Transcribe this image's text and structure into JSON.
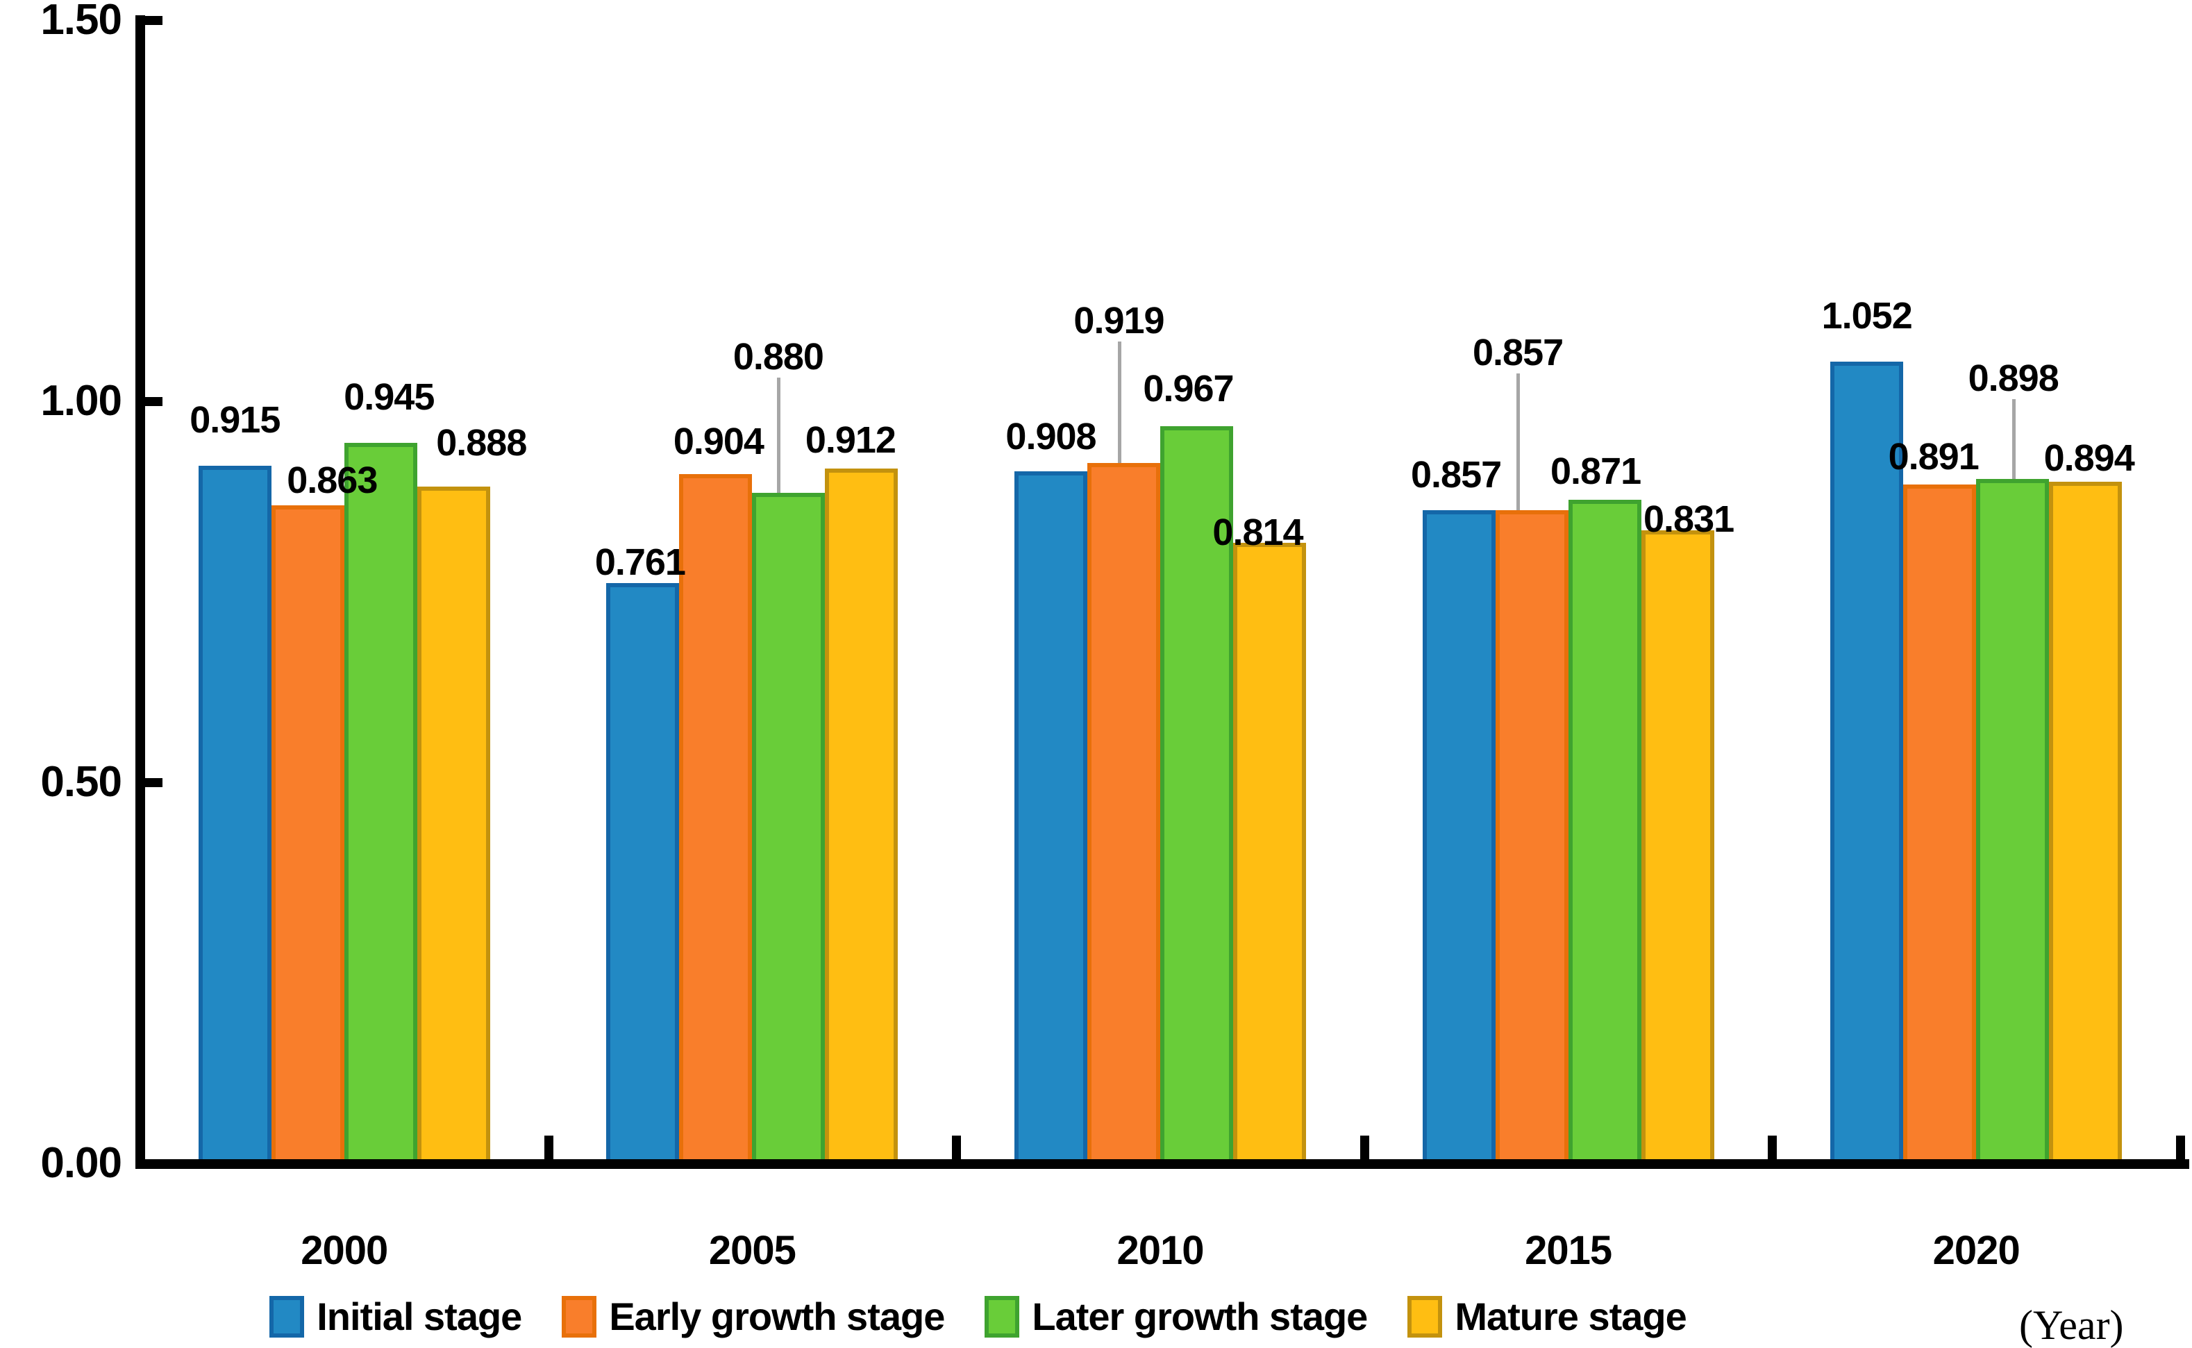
{
  "chart_data": {
    "type": "bar",
    "title": "",
    "categories": [
      "2000",
      "2005",
      "2010",
      "2015",
      "2020"
    ],
    "series": [
      {
        "name": "Initial stage",
        "color": "#2289C4",
        "border_color": "#1467A8",
        "values": [
          0.915,
          0.761,
          0.908,
          0.857,
          1.052
        ],
        "labels": [
          "0.915",
          "0.761",
          "0.908",
          "0.857",
          "1.052"
        ],
        "label_offsets": [
          {
            "dx": 0,
            "dy": -66,
            "leader": false
          },
          {
            "dx": -4,
            "dy": -30,
            "leader": false
          },
          {
            "dx": 0,
            "dy": -50,
            "leader": false
          },
          {
            "dx": -4,
            "dy": -51,
            "leader": false
          },
          {
            "dx": 0,
            "dy": -66,
            "leader": false
          }
        ]
      },
      {
        "name": "Early growth stage",
        "color": "#F97E2B",
        "border_color": "#E8700A",
        "values": [
          0.863,
          0.904,
          0.919,
          0.857,
          0.891
        ],
        "labels": [
          "0.863",
          "0.904",
          "0.919",
          "0.857",
          "0.891"
        ],
        "label_offsets": [
          {
            "dx": 35,
            "dy": -36,
            "leader": false
          },
          {
            "dx": 4,
            "dy": -47,
            "leader": false
          },
          {
            "dx": -7,
            "dy": -205,
            "leader": true
          },
          {
            "dx": -20,
            "dy": -227,
            "leader": true
          },
          {
            "dx": -9,
            "dy": -40,
            "leader": false
          }
        ]
      },
      {
        "name": "Later growth stage",
        "color": "#69CD39",
        "border_color": "#3FA32F",
        "values": [
          0.945,
          0.88,
          0.967,
          0.871,
          0.898
        ],
        "labels": [
          "0.945",
          "0.880",
          "0.967",
          "0.871",
          "0.898"
        ],
        "label_offsets": [
          {
            "dx": 12,
            "dy": -66,
            "leader": false
          },
          {
            "dx": -15,
            "dy": -196,
            "leader": true
          },
          {
            "dx": -12,
            "dy": -54,
            "leader": false
          },
          {
            "dx": -13,
            "dy": -41,
            "leader": false
          },
          {
            "dx": 1,
            "dy": -145,
            "leader": true
          }
        ]
      },
      {
        "name": "Mature stage",
        "color": "#FFBE12",
        "border_color": "#C3920E",
        "values": [
          0.888,
          0.912,
          0.814,
          0.831,
          0.894
        ],
        "labels": [
          "0.888",
          "0.912",
          "0.814",
          "0.831",
          "0.894"
        ],
        "label_offsets": [
          {
            "dx": 40,
            "dy": -63,
            "leader": false
          },
          {
            "dx": -16,
            "dy": -41,
            "leader": false
          },
          {
            "dx": -17,
            "dy": -15,
            "leader": false
          },
          {
            "dx": 16,
            "dy": -16,
            "leader": false
          },
          {
            "dx": 5,
            "dy": -34,
            "leader": false
          }
        ]
      }
    ],
    "y_axis": {
      "min": 0,
      "max": 1.5,
      "ticks": [
        "1.50",
        "1.00",
        "0.50",
        "0.00"
      ]
    },
    "x_axis_note": "(Year)",
    "legend_position": "bottom",
    "grid": false,
    "axis_color": "#000000",
    "leader_color": "#A6A6A6",
    "background_color": "#FFFFFF"
  }
}
